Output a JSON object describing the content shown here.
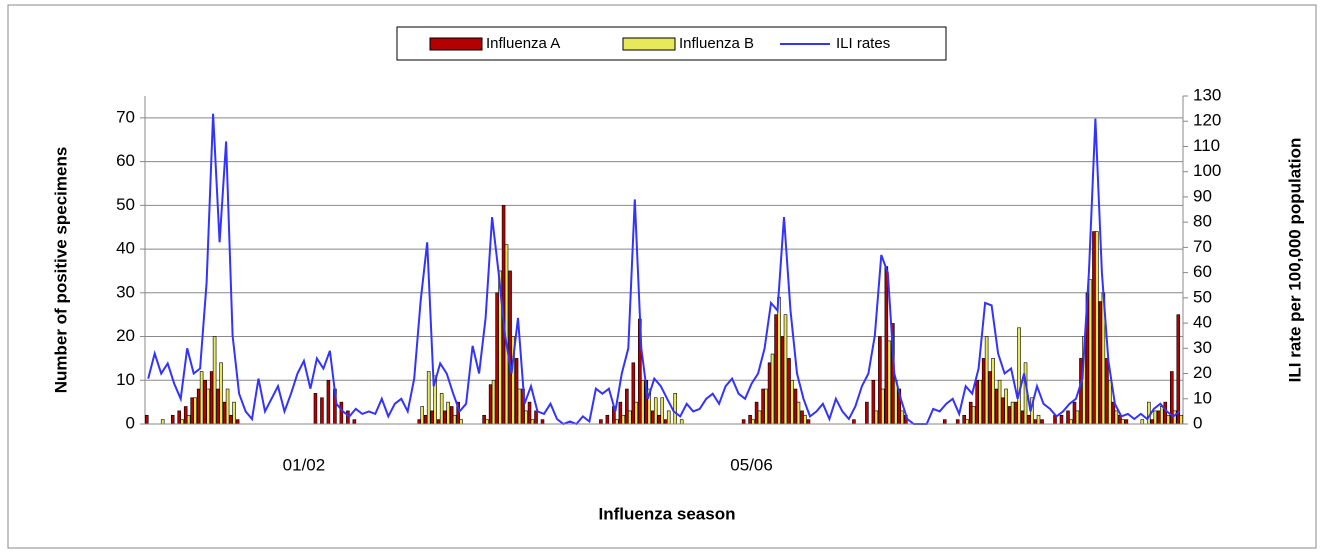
{
  "chart_data": {
    "type": "bar",
    "x_label": "Influenza season",
    "y_label": "Number of positive specimens",
    "y2_label": "ILI rate per 100,000 population",
    "categories": [
      null,
      null,
      null,
      null,
      null,
      null,
      null,
      null,
      null,
      null,
      null,
      null,
      null,
      null,
      null,
      null,
      null,
      null,
      null,
      null,
      null,
      null,
      null,
      null,
      "01/02",
      null,
      null,
      null,
      null,
      null,
      null,
      null,
      null,
      null,
      null,
      null,
      null,
      null,
      null,
      null,
      null,
      null,
      null,
      null,
      null,
      null,
      null,
      null,
      null,
      null,
      null,
      null,
      null,
      null,
      null,
      null,
      null,
      null,
      null,
      null,
      null,
      null,
      null,
      null,
      null,
      null,
      null,
      null,
      null,
      null,
      null,
      null,
      null,
      null,
      null,
      null,
      null,
      null,
      null,
      null,
      null,
      null,
      null,
      null,
      null,
      null,
      null,
      null,
      null,
      null,
      null,
      null,
      null,
      "05/06",
      null,
      null,
      null,
      null,
      null,
      null,
      null,
      null,
      null,
      null,
      null,
      null,
      null,
      null,
      null,
      null,
      null,
      null,
      null,
      null,
      null,
      null,
      null,
      null,
      null,
      null,
      null,
      null,
      null,
      null,
      null,
      null,
      null,
      null,
      null,
      null,
      null,
      null,
      null,
      null,
      null,
      null,
      null,
      null,
      null,
      null,
      null,
      null,
      null,
      null,
      null,
      null,
      null,
      null,
      null,
      null,
      null,
      null,
      null,
      null,
      null,
      null,
      null,
      null,
      null,
      null
    ],
    "series": [
      {
        "name": "Influenza A",
        "color": "#b30000",
        "values": [
          2,
          0,
          0,
          0,
          2,
          3,
          4,
          6,
          8,
          10,
          12,
          8,
          5,
          2,
          1,
          0,
          0,
          0,
          0,
          0,
          0,
          0,
          0,
          0,
          0,
          0,
          7,
          6,
          10,
          8,
          5,
          3,
          1,
          0,
          0,
          0,
          0,
          0,
          0,
          0,
          0,
          0,
          1,
          2,
          3,
          1,
          3,
          4,
          5,
          0,
          0,
          0,
          2,
          9,
          30,
          50,
          35,
          15,
          8,
          5,
          3,
          1,
          0,
          0,
          0,
          0,
          0,
          0,
          0,
          0,
          1,
          2,
          4,
          5,
          8,
          14,
          24,
          10,
          3,
          2,
          1,
          0,
          0,
          0,
          0,
          0,
          0,
          0,
          0,
          0,
          0,
          0,
          1,
          2,
          5,
          8,
          14,
          25,
          20,
          15,
          8,
          3,
          1,
          0,
          0,
          0,
          0,
          0,
          0,
          1,
          0,
          5,
          10,
          20,
          36,
          23,
          8,
          2,
          0,
          0,
          0,
          0,
          0,
          1,
          0,
          1,
          2,
          5,
          10,
          15,
          12,
          8,
          6,
          4,
          5,
          3,
          2,
          1,
          1,
          0,
          2,
          2,
          3,
          5,
          15,
          30,
          44,
          28,
          15,
          5,
          2,
          1,
          0,
          0,
          0,
          1,
          3,
          5,
          12,
          25
        ]
      },
      {
        "name": "Influenza B",
        "color": "#e8e85c",
        "values": [
          0,
          0,
          1,
          0,
          0,
          1,
          2,
          6,
          12,
          8,
          20,
          14,
          8,
          5,
          0,
          0,
          0,
          0,
          0,
          0,
          0,
          0,
          0,
          0,
          0,
          0,
          0,
          0,
          0,
          0,
          0,
          0,
          0,
          0,
          0,
          0,
          0,
          0,
          0,
          0,
          0,
          0,
          4,
          12,
          11,
          7,
          5,
          2,
          1,
          0,
          0,
          0,
          1,
          10,
          35,
          41,
          20,
          8,
          3,
          1,
          0,
          0,
          0,
          0,
          0,
          0,
          0,
          0,
          0,
          0,
          0,
          0,
          1,
          2,
          3,
          5,
          10,
          8,
          6,
          6,
          3,
          7,
          1,
          0,
          0,
          0,
          0,
          0,
          0,
          0,
          0,
          0,
          0,
          1,
          3,
          8,
          16,
          29,
          25,
          10,
          5,
          2,
          0,
          0,
          0,
          0,
          0,
          0,
          0,
          0,
          0,
          0,
          3,
          8,
          19,
          10,
          3,
          0,
          0,
          0,
          0,
          0,
          0,
          0,
          0,
          0,
          1,
          4,
          10,
          20,
          15,
          10,
          8,
          5,
          22,
          14,
          6,
          2,
          0,
          0,
          0,
          0,
          1,
          3,
          20,
          33,
          44,
          30,
          10,
          3,
          1,
          0,
          0,
          1,
          5,
          3,
          4,
          2,
          3,
          2
        ]
      },
      {
        "name": "ILI rates",
        "color": "#3333ff",
        "type": "line",
        "axis": "y2",
        "values": [
          18,
          28,
          20,
          24,
          16,
          10,
          30,
          20,
          22,
          56,
          123,
          72,
          112,
          35,
          12,
          5,
          2,
          18,
          5,
          10,
          15,
          5,
          12,
          20,
          25,
          14,
          26,
          22,
          29,
          8,
          5,
          3,
          6,
          4,
          5,
          4,
          10,
          3,
          8,
          10,
          5,
          18,
          49,
          72,
          15,
          24,
          20,
          12,
          5,
          8,
          31,
          20,
          42,
          82,
          60,
          35,
          20,
          42,
          8,
          15,
          5,
          4,
          8,
          2,
          0,
          1,
          0,
          3,
          1,
          14,
          12,
          14,
          5,
          20,
          30,
          89,
          30,
          10,
          18,
          15,
          10,
          5,
          3,
          8,
          5,
          6,
          10,
          12,
          8,
          15,
          18,
          12,
          10,
          16,
          20,
          30,
          48,
          45,
          82,
          45,
          20,
          10,
          3,
          5,
          8,
          2,
          10,
          5,
          2,
          7,
          15,
          20,
          35,
          67,
          60,
          20,
          10,
          2,
          0,
          0,
          0,
          6,
          5,
          8,
          10,
          4,
          15,
          12,
          22,
          48,
          47,
          28,
          20,
          22,
          10,
          20,
          5,
          15,
          8,
          6,
          3,
          5,
          8,
          10,
          18,
          60,
          121,
          60,
          25,
          8,
          3,
          4,
          2,
          4,
          2,
          6,
          8,
          5,
          3,
          5
        ]
      }
    ],
    "ylim": [
      0,
      75
    ],
    "yticks": [
      0,
      10,
      20,
      30,
      40,
      50,
      60,
      70
    ],
    "y2lim": [
      0,
      130
    ],
    "y2ticks": [
      0,
      10,
      20,
      30,
      40,
      50,
      60,
      70,
      80,
      90,
      100,
      110,
      120,
      130
    ],
    "grid": true,
    "legend": "top"
  }
}
